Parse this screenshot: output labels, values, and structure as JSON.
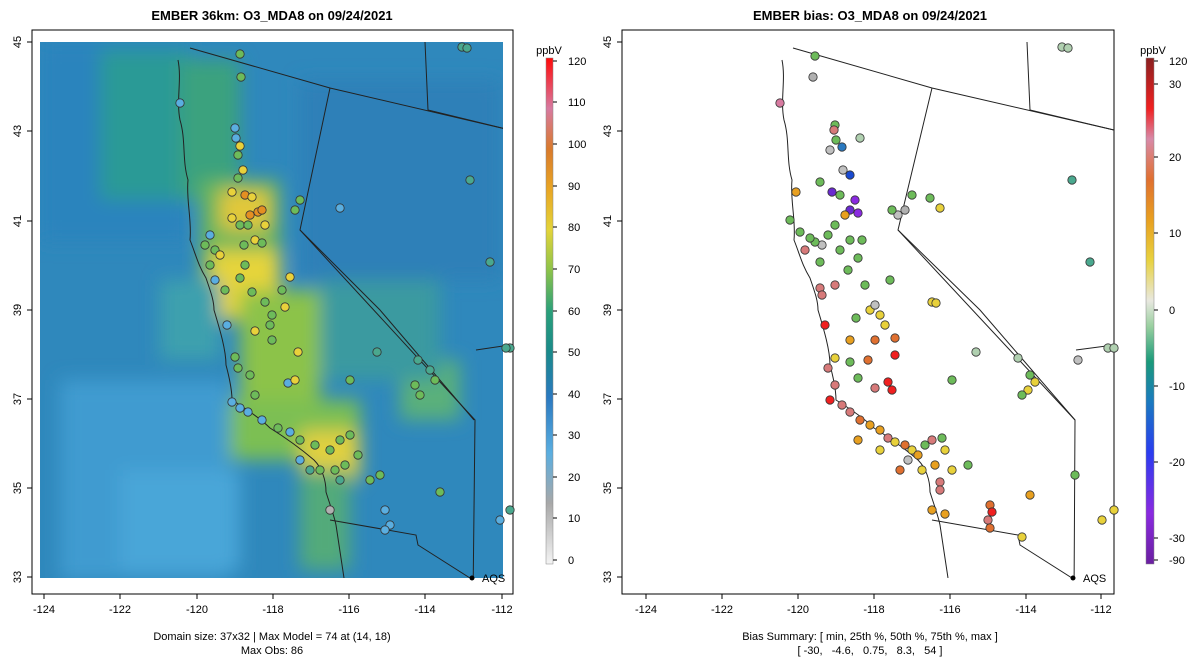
{
  "left_panel": {
    "title": "EMBER 36km: O3_MDA8 on 09/24/2021",
    "footer_line1": "Domain size: 37x32 | Max Model = 74 at (14, 18)",
    "footer_line2": "Max Obs: 86",
    "colorbar_unit": "ppbV",
    "colorbar_ticks": [
      "0",
      "10",
      "20",
      "30",
      "40",
      "50",
      "60",
      "70",
      "80",
      "90",
      "100",
      "110",
      "120"
    ],
    "network_label": "AQS"
  },
  "right_panel": {
    "title": "EMBER bias: O3_MDA8 on 09/24/2021",
    "footer_line1": "Bias Summary: [ min, 25th %, 50th %, 75th %, max ]",
    "footer_line2": "[ -30,   -4.6,   0.75,   8.3,   54 ]",
    "colorbar_unit": "ppbV",
    "colorbar_ticks": [
      "-90",
      "-30",
      "-20",
      "-10",
      "0",
      "10",
      "20",
      "30",
      "120"
    ],
    "network_label": "AQS"
  },
  "map_axes": {
    "lon_ticks": [
      "-124",
      "-122",
      "-120",
      "-118",
      "-116",
      "-114",
      "-112"
    ],
    "lat_ticks": [
      "33",
      "35",
      "37",
      "39",
      "41",
      "43",
      "45"
    ]
  },
  "colors": {
    "ocean_model": "#2f86b9",
    "land_low": "#3e9bc8",
    "mid": "#4aa88e",
    "green": "#6dbb5a",
    "yellow": "#e8d13b",
    "orange": "#e48f22",
    "site_outline": "#333333"
  }
}
